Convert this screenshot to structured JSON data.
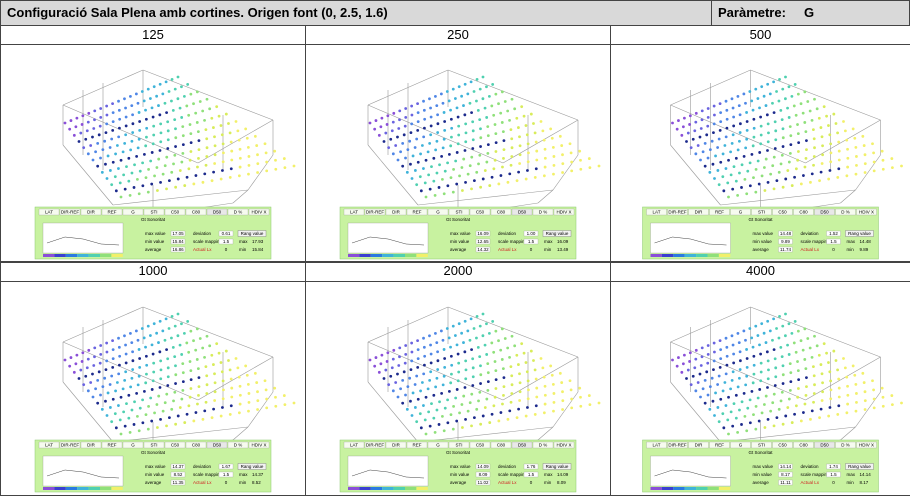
{
  "header": {
    "title": "Configuració Sala Plena amb cortines. Origen font (0, 2.5, 1.6)",
    "parameter_label": "Paràmetre:",
    "parameter": "G"
  },
  "tabs": [
    "LAT",
    "DIR-REF",
    "DIR",
    "REF",
    "G",
    "STI",
    "C50",
    "C80",
    "D50",
    "D %",
    "HDIV X"
  ],
  "panel_labels": {
    "plot_title": "Gt Sonoritat",
    "max": "max value",
    "min": "min value",
    "average": "average",
    "deviation": "deviation",
    "scale": "scale mapping",
    "actual": "Actual Lx",
    "button": "Rang value",
    "rmax": "max",
    "rmin": "min"
  },
  "cells": [
    {
      "frequency": "125",
      "max": "17.05",
      "min": "15.84",
      "average": "16.86",
      "deviation": "0.61",
      "scale": "1.5",
      "actual": "0",
      "rmax": "17.93",
      "rmin": "15.84"
    },
    {
      "frequency": "250",
      "max": "16.09",
      "min": "12.65",
      "average": "14.32",
      "deviation": "1.00",
      "scale": "1.5",
      "actual": "0",
      "rmax": "16.09",
      "rmin": "13.49"
    },
    {
      "frequency": "500",
      "max": "14.48",
      "min": "9.89",
      "average": "11.74",
      "deviation": "1.52",
      "scale": "1.5",
      "actual": "0",
      "rmax": "14.48",
      "rmin": "9.89"
    },
    {
      "frequency": "1000",
      "max": "14.37",
      "min": "8.52",
      "average": "11.35",
      "deviation": "1.67",
      "scale": "1.5",
      "actual": "0",
      "rmax": "14.37",
      "rmin": "8.52"
    },
    {
      "frequency": "2000",
      "max": "14.09",
      "min": "8.09",
      "average": "11.02",
      "deviation": "1.76",
      "scale": "1.5",
      "actual": "0",
      "rmax": "14.09",
      "rmin": "8.09"
    },
    {
      "frequency": "4000",
      "max": "14.14",
      "min": "8.17",
      "average": "11.11",
      "deviation": "1.74",
      "scale": "1.5",
      "actual": "0",
      "rmax": "14.14",
      "rmin": "8.17"
    }
  ]
}
